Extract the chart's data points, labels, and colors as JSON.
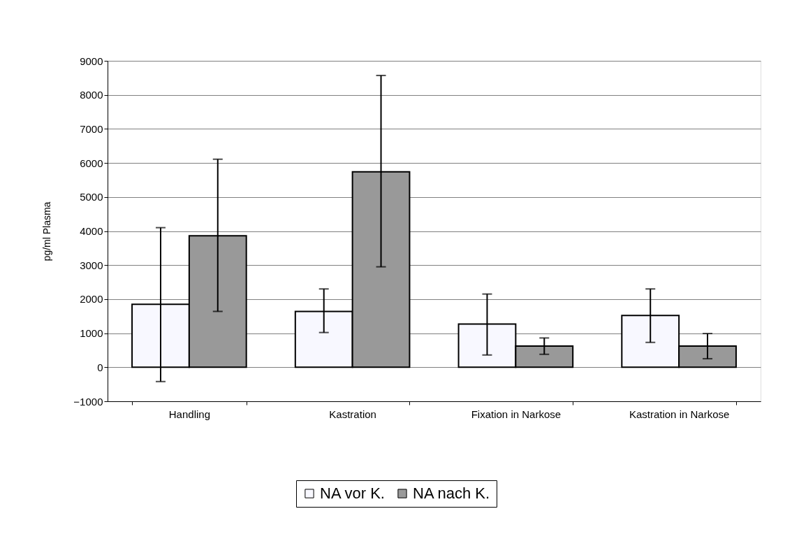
{
  "chart_data": {
    "type": "bar",
    "ylabel": "pg/ml Plasma",
    "categories": [
      "Handling",
      "Kastration",
      "Fixation in Narkose",
      "Kastration in Narkose"
    ],
    "series": [
      {
        "name": "NA vor K.",
        "color": "#f8f8ff",
        "values": [
          1850,
          1640,
          1270,
          1520
        ],
        "errors": [
          [
            -420,
            4100
          ],
          [
            1020,
            2300
          ],
          [
            360,
            2150
          ],
          [
            730,
            2300
          ]
        ]
      },
      {
        "name": "NA nach K.",
        "color": "#999999",
        "values": [
          3860,
          5740,
          620,
          620
        ],
        "errors": [
          [
            1640,
            6110
          ],
          [
            2950,
            8570
          ],
          [
            380,
            860
          ],
          [
            250,
            990
          ]
        ]
      }
    ],
    "ylim": [
      -1000,
      9000
    ],
    "yticks": [
      -1000,
      0,
      1000,
      2000,
      3000,
      4000,
      5000,
      6000,
      7000,
      8000,
      9000
    ],
    "grid": "y",
    "legend": "bottom"
  }
}
